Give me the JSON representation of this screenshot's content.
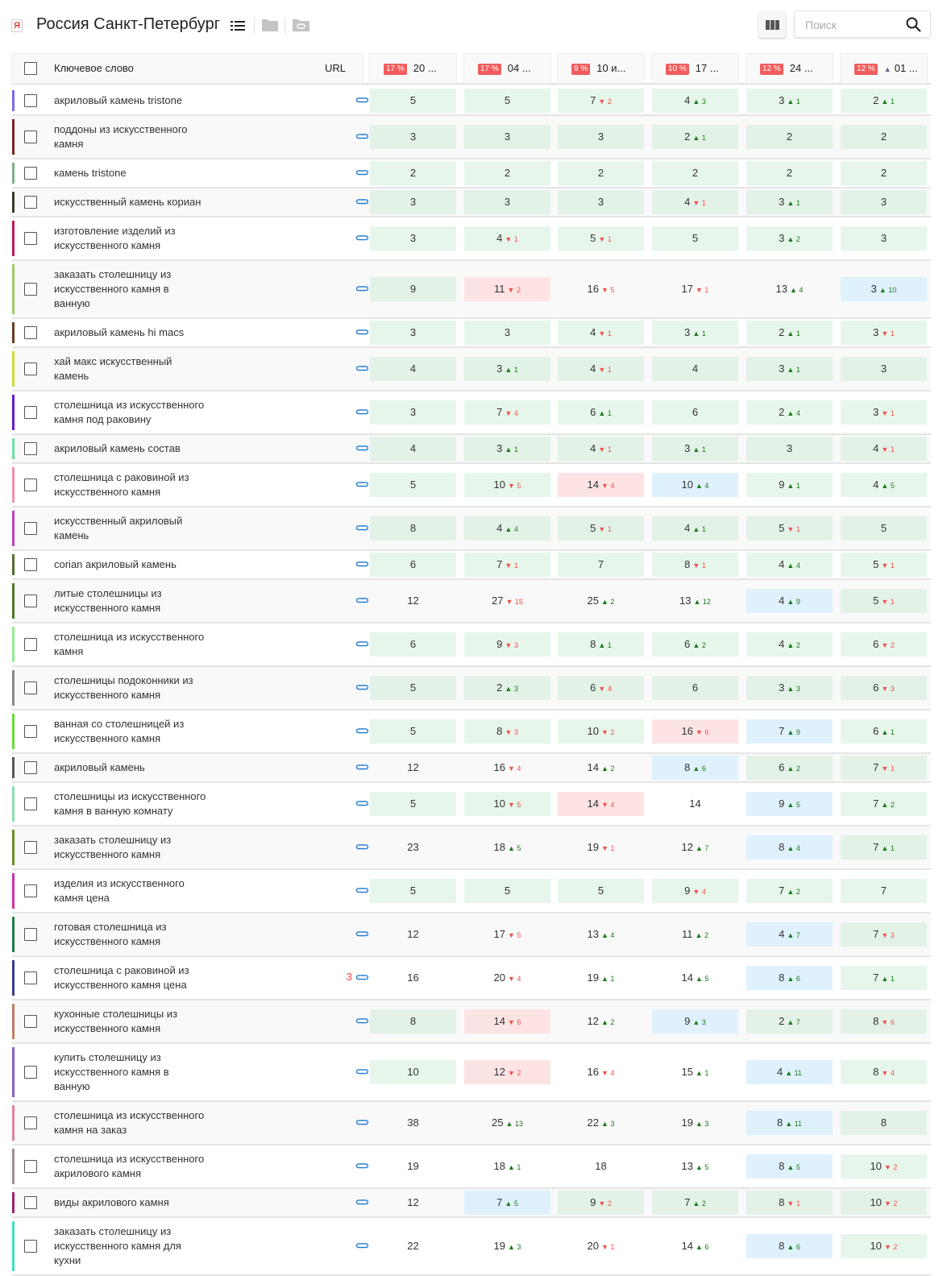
{
  "header": {
    "title": "Россия Санкт-Петербург",
    "search_placeholder": "Поиск",
    "engine_icon": "Я"
  },
  "table": {
    "col_keyword": "Ключевое слово",
    "col_url": "URL",
    "dates": [
      {
        "pct": "17 %",
        "label": "20 ..."
      },
      {
        "pct": "17 %",
        "label": "04 ..."
      },
      {
        "pct": "9 %",
        "label": "10 и..."
      },
      {
        "pct": "10 %",
        "label": "17 ..."
      },
      {
        "pct": "12 %",
        "label": "24 ..."
      },
      {
        "pct": "12 %",
        "label": "01 ...",
        "marker": "▲"
      }
    ],
    "colors": {
      "up": "#1a7a1a",
      "down": "#f05050",
      "green_cell": "#e6f6ea",
      "red_cell": "#fde3e4",
      "blue_cell": "#dff1fc"
    },
    "rows": [
      {
        "kw": "акриловый камень tristone",
        "c": "#7b68ee",
        "cells": [
          [
            "5",
            0,
            "g"
          ],
          [
            "5",
            0,
            "g"
          ],
          [
            "7",
            -2,
            "g"
          ],
          [
            "4",
            3,
            "g"
          ],
          [
            "3",
            1,
            "g"
          ],
          [
            "2",
            1,
            "g"
          ]
        ]
      },
      {
        "kw": "поддоны из искусственного камня",
        "c": "#7b2020",
        "cells": [
          [
            "3",
            0,
            "g"
          ],
          [
            "3",
            0,
            "g"
          ],
          [
            "3",
            0,
            "g"
          ],
          [
            "2",
            1,
            "g"
          ],
          [
            "2",
            0,
            "g"
          ],
          [
            "2",
            0,
            "g"
          ]
        ]
      },
      {
        "kw": "камень tristone",
        "c": "#7fae8a",
        "cells": [
          [
            "2",
            0,
            "g"
          ],
          [
            "2",
            0,
            "g"
          ],
          [
            "2",
            0,
            "g"
          ],
          [
            "2",
            0,
            "g"
          ],
          [
            "2",
            0,
            "g"
          ],
          [
            "2",
            0,
            "g"
          ]
        ]
      },
      {
        "kw": "искусственный камень кориан",
        "c": "#3a3a2a",
        "cells": [
          [
            "3",
            0,
            "g"
          ],
          [
            "3",
            0,
            "g"
          ],
          [
            "3",
            0,
            "g"
          ],
          [
            "4",
            -1,
            "g"
          ],
          [
            "3",
            1,
            "g"
          ],
          [
            "3",
            0,
            "g"
          ]
        ]
      },
      {
        "kw": "изготовление изделий из искусственного камня",
        "c": "#c2185b",
        "cells": [
          [
            "3",
            0,
            "g"
          ],
          [
            "4",
            -1,
            "g"
          ],
          [
            "5",
            -1,
            "g"
          ],
          [
            "5",
            0,
            "g"
          ],
          [
            "3",
            2,
            "g"
          ],
          [
            "3",
            0,
            "g"
          ]
        ]
      },
      {
        "kw": "заказать столешницу из искусственного камня в ванную",
        "c": "#9ccc65",
        "cells": [
          [
            "9",
            0,
            "g"
          ],
          [
            "11",
            -2,
            "p"
          ],
          [
            "16",
            -5,
            "n"
          ],
          [
            "17",
            -1,
            "n"
          ],
          [
            "13",
            4,
            "n"
          ],
          [
            "3",
            10,
            "b"
          ]
        ]
      },
      {
        "kw": "акриловый камень hi macs",
        "c": "#6d3b1e",
        "cells": [
          [
            "3",
            0,
            "g"
          ],
          [
            "3",
            0,
            "g"
          ],
          [
            "4",
            -1,
            "g"
          ],
          [
            "3",
            1,
            "g"
          ],
          [
            "2",
            1,
            "g"
          ],
          [
            "3",
            -1,
            "g"
          ]
        ]
      },
      {
        "kw": "хай макс искусственный камень",
        "c": "#cddc39",
        "cells": [
          [
            "4",
            0,
            "g"
          ],
          [
            "3",
            1,
            "g"
          ],
          [
            "4",
            -1,
            "g"
          ],
          [
            "4",
            0,
            "g"
          ],
          [
            "3",
            1,
            "g"
          ],
          [
            "3",
            0,
            "g"
          ]
        ]
      },
      {
        "kw": "столешница из искусственного камня под раковину",
        "c": "#6a1bd0",
        "cells": [
          [
            "3",
            0,
            "g"
          ],
          [
            "7",
            -4,
            "g"
          ],
          [
            "6",
            1,
            "g"
          ],
          [
            "6",
            0,
            "g"
          ],
          [
            "2",
            4,
            "g"
          ],
          [
            "3",
            -1,
            "g"
          ]
        ]
      },
      {
        "kw": "акриловый камень состав",
        "c": "#69e0a0",
        "cells": [
          [
            "4",
            0,
            "g"
          ],
          [
            "3",
            1,
            "g"
          ],
          [
            "4",
            -1,
            "g"
          ],
          [
            "3",
            1,
            "g"
          ],
          [
            "3",
            0,
            "g"
          ],
          [
            "4",
            -1,
            "g"
          ]
        ]
      },
      {
        "kw": "столешница с раковиной из искусственного камня",
        "c": "#f48fb1",
        "cells": [
          [
            "5",
            0,
            "g"
          ],
          [
            "10",
            -5,
            "g"
          ],
          [
            "14",
            -4,
            "p"
          ],
          [
            "10",
            4,
            "b"
          ],
          [
            "9",
            1,
            "g"
          ],
          [
            "4",
            5,
            "g"
          ]
        ]
      },
      {
        "kw": "искусственный акриловый камень",
        "c": "#c040c0",
        "cells": [
          [
            "8",
            0,
            "g"
          ],
          [
            "4",
            4,
            "g"
          ],
          [
            "5",
            -1,
            "g"
          ],
          [
            "4",
            1,
            "g"
          ],
          [
            "5",
            -1,
            "g"
          ],
          [
            "5",
            0,
            "g"
          ]
        ]
      },
      {
        "kw": "corian акриловый камень",
        "c": "#556b2f",
        "cells": [
          [
            "6",
            0,
            "g"
          ],
          [
            "7",
            -1,
            "g"
          ],
          [
            "7",
            0,
            "g"
          ],
          [
            "8",
            -1,
            "g"
          ],
          [
            "4",
            4,
            "g"
          ],
          [
            "5",
            -1,
            "g"
          ]
        ]
      },
      {
        "kw": "литые столешницы из искусственного камня",
        "c": "#4a7a2a",
        "cells": [
          [
            "12",
            0,
            "n"
          ],
          [
            "27",
            -15,
            "n"
          ],
          [
            "25",
            2,
            "n"
          ],
          [
            "13",
            12,
            "n"
          ],
          [
            "4",
            9,
            "b"
          ],
          [
            "5",
            -1,
            "g"
          ]
        ]
      },
      {
        "kw": "столешница из искусственного камня",
        "c": "#90ee90",
        "cells": [
          [
            "6",
            0,
            "g"
          ],
          [
            "9",
            -3,
            "g"
          ],
          [
            "8",
            1,
            "g"
          ],
          [
            "6",
            2,
            "g"
          ],
          [
            "4",
            2,
            "g"
          ],
          [
            "6",
            -2,
            "g"
          ]
        ]
      },
      {
        "kw": "столешницы подоконники из искусственного камня",
        "c": "#888888",
        "cells": [
          [
            "5",
            0,
            "g"
          ],
          [
            "2",
            3,
            "g"
          ],
          [
            "6",
            -4,
            "g"
          ],
          [
            "6",
            0,
            "g"
          ],
          [
            "3",
            3,
            "g"
          ],
          [
            "6",
            -3,
            "g"
          ]
        ]
      },
      {
        "kw": "ванная со столешницей из искусственного камня",
        "c": "#66dd33",
        "cells": [
          [
            "5",
            0,
            "g"
          ],
          [
            "8",
            -3,
            "g"
          ],
          [
            "10",
            -2,
            "g"
          ],
          [
            "16",
            -6,
            "p"
          ],
          [
            "7",
            9,
            "b"
          ],
          [
            "6",
            1,
            "g"
          ]
        ]
      },
      {
        "kw": "акриловый камень",
        "c": "#555555",
        "cells": [
          [
            "12",
            0,
            "n"
          ],
          [
            "16",
            -4,
            "n"
          ],
          [
            "14",
            2,
            "n"
          ],
          [
            "8",
            6,
            "b"
          ],
          [
            "6",
            2,
            "g"
          ],
          [
            "7",
            -1,
            "g"
          ]
        ]
      },
      {
        "kw": "столешницы из искусственного камня в ванную комнату",
        "c": "#88e0b0",
        "cells": [
          [
            "5",
            0,
            "g"
          ],
          [
            "10",
            -5,
            "g"
          ],
          [
            "14",
            -4,
            "p"
          ],
          [
            "14",
            0,
            "n"
          ],
          [
            "9",
            5,
            "b"
          ],
          [
            "7",
            2,
            "g"
          ]
        ]
      },
      {
        "kw": "заказать столешницу из искусственного камня",
        "c": "#6b8e23",
        "cells": [
          [
            "23",
            0,
            "n"
          ],
          [
            "18",
            5,
            "n"
          ],
          [
            "19",
            -1,
            "n"
          ],
          [
            "12",
            7,
            "n"
          ],
          [
            "8",
            4,
            "b"
          ],
          [
            "7",
            1,
            "g"
          ]
        ]
      },
      {
        "kw": "изделия из искусственного камня цена",
        "c": "#cc33aa",
        "cells": [
          [
            "5",
            0,
            "g"
          ],
          [
            "5",
            0,
            "g"
          ],
          [
            "5",
            0,
            "g"
          ],
          [
            "9",
            -4,
            "g"
          ],
          [
            "7",
            2,
            "g"
          ],
          [
            "7",
            0,
            "g"
          ]
        ]
      },
      {
        "kw": "готовая столешница из искусственного камня",
        "c": "#1a7a4a",
        "cells": [
          [
            "12",
            0,
            "n"
          ],
          [
            "17",
            -5,
            "n"
          ],
          [
            "13",
            4,
            "n"
          ],
          [
            "11",
            2,
            "n"
          ],
          [
            "4",
            7,
            "b"
          ],
          [
            "7",
            -3,
            "g"
          ]
        ]
      },
      {
        "kw": "столешница с раковиной из искусственного камня цена",
        "c": "#3a3a8a",
        "url_count": "3",
        "cells": [
          [
            "16",
            0,
            "n"
          ],
          [
            "20",
            -4,
            "n"
          ],
          [
            "19",
            1,
            "n"
          ],
          [
            "14",
            5,
            "n"
          ],
          [
            "8",
            6,
            "b"
          ],
          [
            "7",
            1,
            "g"
          ]
        ]
      },
      {
        "kw": "кухонные столешницы из искусственного камня",
        "c": "#c08060",
        "cells": [
          [
            "8",
            0,
            "g"
          ],
          [
            "14",
            -6,
            "p"
          ],
          [
            "12",
            2,
            "n"
          ],
          [
            "9",
            3,
            "b"
          ],
          [
            "2",
            7,
            "g"
          ],
          [
            "8",
            -6,
            "g"
          ]
        ]
      },
      {
        "kw": "купить столешницу из искусственного камня в ванную",
        "c": "#9060c0",
        "cells": [
          [
            "10",
            0,
            "g"
          ],
          [
            "12",
            -2,
            "p"
          ],
          [
            "16",
            -4,
            "n"
          ],
          [
            "15",
            1,
            "n"
          ],
          [
            "4",
            11,
            "b"
          ],
          [
            "8",
            -4,
            "g"
          ]
        ]
      },
      {
        "kw": "столешница из искусственного камня на заказ",
        "c": "#e080a0",
        "cells": [
          [
            "38",
            0,
            "n"
          ],
          [
            "25",
            13,
            "n"
          ],
          [
            "22",
            3,
            "n"
          ],
          [
            "19",
            3,
            "n"
          ],
          [
            "8",
            11,
            "b"
          ],
          [
            "8",
            0,
            "g"
          ]
        ]
      },
      {
        "kw": "столешница из искусственного акрилового камня",
        "c": "#a09090",
        "cells": [
          [
            "19",
            0,
            "n"
          ],
          [
            "18",
            1,
            "n"
          ],
          [
            "18",
            0,
            "n"
          ],
          [
            "13",
            5,
            "n"
          ],
          [
            "8",
            5,
            "b"
          ],
          [
            "10",
            -2,
            "g"
          ]
        ]
      },
      {
        "kw": "виды акрилового камня",
        "c": "#a02070",
        "cells": [
          [
            "12",
            0,
            "n"
          ],
          [
            "7",
            5,
            "b"
          ],
          [
            "9",
            -2,
            "g"
          ],
          [
            "7",
            2,
            "g"
          ],
          [
            "8",
            -1,
            "g"
          ],
          [
            "10",
            -2,
            "g"
          ]
        ]
      },
      {
        "kw": "заказать столешницу из искусственного камня для кухни",
        "c": "#40e0c0",
        "cells": [
          [
            "22",
            0,
            "n"
          ],
          [
            "19",
            3,
            "n"
          ],
          [
            "20",
            -1,
            "n"
          ],
          [
            "14",
            6,
            "n"
          ],
          [
            "8",
            6,
            "b"
          ],
          [
            "10",
            -2,
            "g"
          ]
        ]
      }
    ]
  }
}
